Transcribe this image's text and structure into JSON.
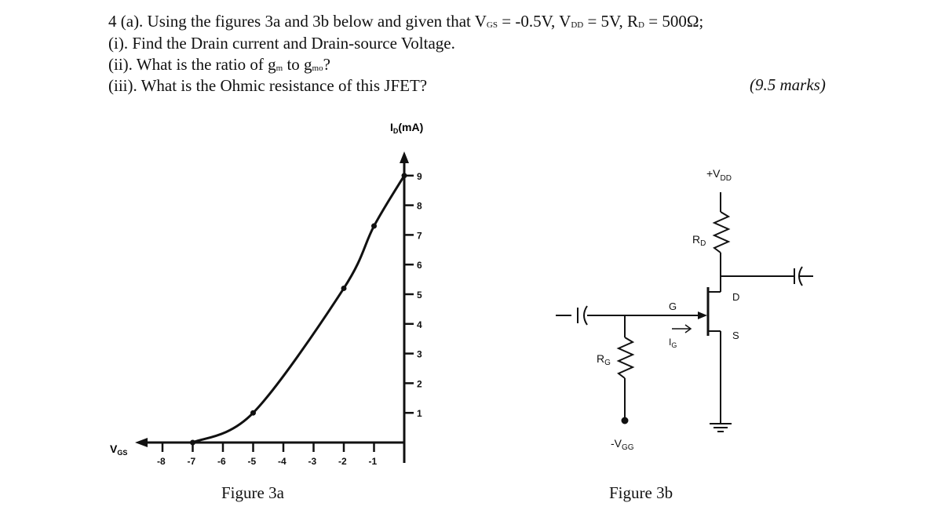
{
  "question": {
    "line1": {
      "lead": "4 (a). Using the figures 3a and 3b below and given that V",
      "vgs_sub": "GS",
      "vgs_val": " = -0.5V, V",
      "vdd_sub": "DD",
      "vdd_val": " = 5V, R",
      "rd_sub": "D",
      "rd_val": " = 500Ω;"
    },
    "line2": "(i).  Find the Drain current and Drain-source Voltage.",
    "line3": {
      "lead": "(ii).  What is the ratio of g",
      "gm_sub": "m",
      "mid": " to g",
      "gmo_sub": "mo",
      "end": "?"
    },
    "line4": "(iii). What is the Ohmic resistance of this JFET?",
    "marks": "(9.5 marks)"
  },
  "figure_3a": {
    "caption": "Figure 3a",
    "y_axis_label": "I",
    "y_axis_label_sub": "D",
    "y_axis_unit": "(mA)",
    "x_axis_label": "V",
    "x_axis_label_sub": "GS",
    "chart_data": {
      "type": "line",
      "x_ticks": [
        "-8",
        "-7",
        "-6",
        "-5",
        "-4",
        "-3",
        "-2",
        "-1"
      ],
      "y_ticks": [
        "1",
        "2",
        "3",
        "4",
        "5",
        "6",
        "7",
        "8",
        "9"
      ],
      "x": [
        -7,
        -5,
        -2,
        -1,
        0
      ],
      "y": [
        0,
        1,
        5.2,
        7.3,
        9
      ],
      "xlim": [
        -8.5,
        0
      ],
      "ylim": [
        0,
        9.5
      ]
    }
  },
  "figure_3b": {
    "caption": "Figure 3b",
    "vdd_label": "+V",
    "vdd_sub": "DD",
    "rd_label": "R",
    "rd_sub": "D",
    "rg_label": "R",
    "rg_sub": "G",
    "vgg_label": "-V",
    "vgg_sub": "GG",
    "gate_label": "G",
    "drain_label": "D",
    "source_label": "S",
    "ig_label": "I",
    "ig_sub": "G"
  }
}
